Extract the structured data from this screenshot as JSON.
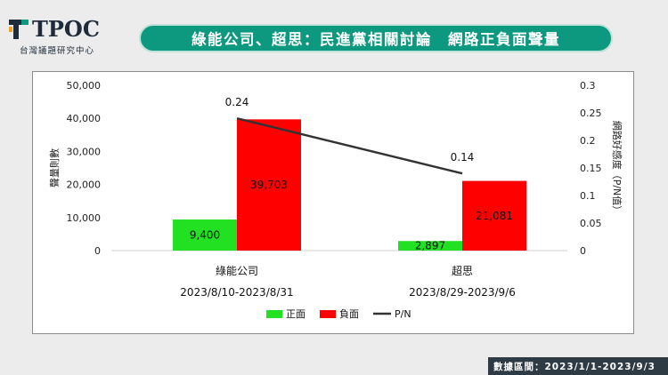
{
  "brand": {
    "logo_text": "TPOC",
    "subtitle": "台灣議題研究中心"
  },
  "header": {
    "title": "綠能公司、超思：民進黨相關討論　網路正負面聲量"
  },
  "footer": {
    "text": "數據區間：2023/1/1-2023/9/3"
  },
  "colors": {
    "positive": "#22e022",
    "negative": "#ff0000",
    "ratio_line": "#333333",
    "accent": "#0d9880"
  },
  "chart_data": {
    "type": "bar",
    "categories": [
      "綠能公司",
      "超思"
    ],
    "category_dates": [
      "2023/8/10-2023/8/31",
      "2023/8/29-2023/9/6"
    ],
    "series": [
      {
        "name": "正面",
        "values": [
          9400,
          2897
        ],
        "labels": [
          "9,400",
          "2,897"
        ]
      },
      {
        "name": "負面",
        "values": [
          39703,
          21081
        ],
        "labels": [
          "39,703",
          "21,081"
        ]
      }
    ],
    "line_series": {
      "name": "P/N",
      "values": [
        0.24,
        0.14
      ],
      "labels": [
        "0.24",
        "0.14"
      ]
    },
    "ylabel": "聲量則數",
    "y2label": "網路好感度（P/N值）",
    "ylim": [
      0,
      50000
    ],
    "y2lim": [
      0,
      0.3
    ],
    "yticks": [
      "0",
      "10,000",
      "20,000",
      "30,000",
      "40,000",
      "50,000"
    ],
    "y2ticks": [
      "0",
      "0.05",
      "0.1",
      "0.15",
      "0.2",
      "0.25",
      "0.3"
    ],
    "legend_position": "bottom",
    "grid": false
  }
}
